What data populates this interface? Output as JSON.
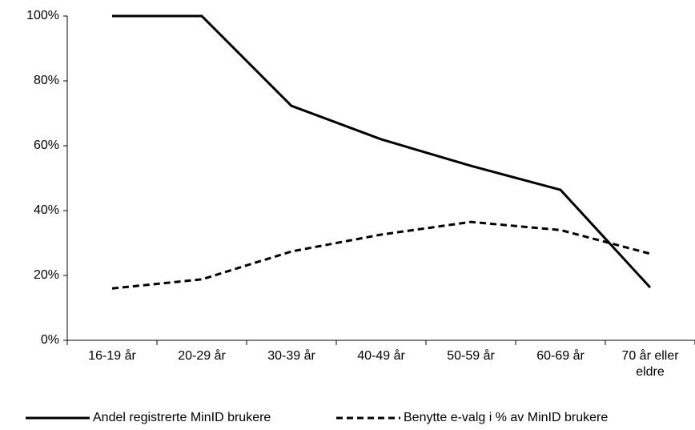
{
  "chart_data": {
    "type": "line",
    "categories": [
      "16-19 år",
      "20-29 år",
      "30-39 år",
      "40-49 år",
      "50-59 år",
      "60-69 år",
      "70 år eller eldre"
    ],
    "series": [
      {
        "name": "Andel registrerte MinID brukere",
        "color": "#000000",
        "dash": "solid",
        "values": [
          100,
          100,
          72.3,
          62,
          53.8,
          46.4,
          16.3
        ]
      },
      {
        "name": "Benytte e-valg i % av MinID brukere",
        "color": "#000000",
        "dash": "dashed",
        "values": [
          16,
          18.8,
          27.4,
          32.6,
          36.5,
          34,
          26.7
        ]
      }
    ],
    "ylim": [
      0,
      100
    ],
    "yticks": [
      {
        "value": 0,
        "label": "0%"
      },
      {
        "value": 20,
        "label": "20%"
      },
      {
        "value": 40,
        "label": "40%"
      },
      {
        "value": 60,
        "label": "60%"
      },
      {
        "value": 80,
        "label": "80%"
      },
      {
        "value": 100,
        "label": "100%"
      }
    ],
    "grid": false,
    "legend": "bottom"
  }
}
